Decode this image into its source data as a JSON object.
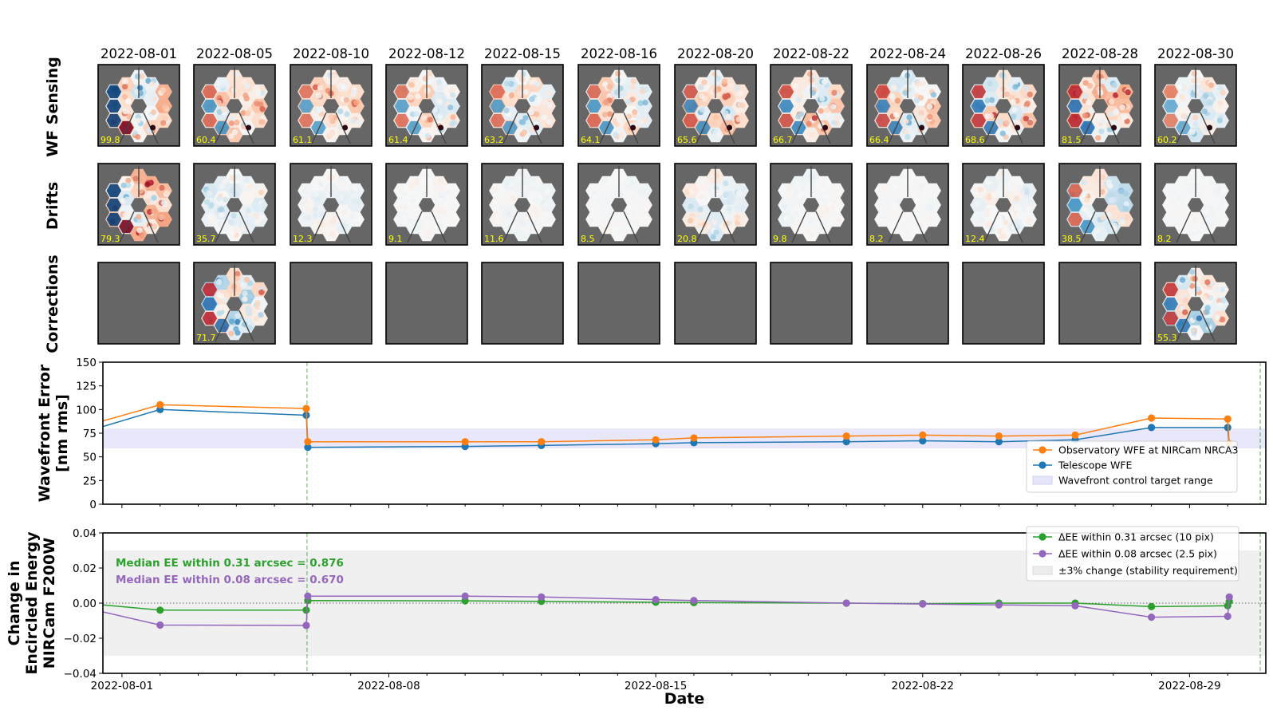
{
  "grid": {
    "dates": [
      "2022-08-01",
      "2022-08-05",
      "2022-08-10",
      "2022-08-12",
      "2022-08-15",
      "2022-08-16",
      "2022-08-20",
      "2022-08-22",
      "2022-08-24",
      "2022-08-26",
      "2022-08-28",
      "2022-08-30"
    ],
    "row_labels": [
      "WF Sensing",
      "Drifts",
      "Corrections"
    ],
    "rows": [
      {
        "values": [
          "99.8",
          "60.4",
          "61.1",
          "61.4",
          "63.2",
          "64.1",
          "65.6",
          "66.7",
          "66.4",
          "68.6",
          "81.5",
          "60.2"
        ],
        "amp": [
          0.95,
          0.75,
          0.7,
          0.7,
          0.72,
          0.74,
          0.8,
          0.82,
          0.85,
          0.9,
          0.95,
          0.65
        ]
      },
      {
        "values": [
          "79.3",
          "35.7",
          "12.3",
          "9.1",
          "11.6",
          "8.5",
          "20.8",
          "9.8",
          "8.2",
          "12.4",
          "38.5",
          "8.2"
        ],
        "amp": [
          0.95,
          0.4,
          0.18,
          0.12,
          0.16,
          0.1,
          0.4,
          0.12,
          0.08,
          0.3,
          0.75,
          0.08
        ]
      },
      {
        "values": [
          "",
          "71.7",
          "",
          "",
          "",
          "",
          "",
          "",
          "",
          "",
          "",
          "55.3"
        ],
        "amp": [
          0,
          0.95,
          0,
          0,
          0,
          0,
          0,
          0,
          0,
          0,
          0,
          0.9
        ]
      }
    ]
  },
  "chart_data": [
    {
      "type": "line",
      "ylabel": "Wavefront Error\n[nm rms]",
      "ylim": [
        0,
        150
      ],
      "yticks": [
        0,
        25,
        50,
        75,
        100,
        125,
        150
      ],
      "target_range": [
        59,
        80
      ],
      "correction_dates": [
        "2022-08-05",
        "2022-08-30"
      ],
      "series": [
        {
          "name": "Observatory WFE at NIRCam NRCA3",
          "color": "#ff7f0e",
          "x": [
            "2022-07-31T12:00",
            "2022-08-02",
            "2022-08-05T20:00",
            "2022-08-05T21:00",
            "2022-08-10",
            "2022-08-12",
            "2022-08-15",
            "2022-08-16",
            "2022-08-20",
            "2022-08-22",
            "2022-08-24",
            "2022-08-26",
            "2022-08-28",
            "2022-08-30",
            "2022-08-30T01:00"
          ],
          "y": [
            88,
            105,
            101,
            66,
            66,
            66,
            68,
            70,
            72,
            73,
            72,
            73,
            91,
            90,
            64
          ]
        },
        {
          "name": "Telescope WFE",
          "color": "#1f77b4",
          "x": [
            "2022-07-31T12:00",
            "2022-08-02",
            "2022-08-05T20:00",
            "2022-08-05T21:00",
            "2022-08-10",
            "2022-08-12",
            "2022-08-15",
            "2022-08-16",
            "2022-08-20",
            "2022-08-22",
            "2022-08-24",
            "2022-08-26",
            "2022-08-28",
            "2022-08-30",
            "2022-08-30T01:00"
          ],
          "y": [
            82,
            100,
            94,
            60,
            61,
            62,
            64,
            65,
            66,
            67,
            66,
            68,
            81,
            81,
            60
          ]
        }
      ],
      "legend": [
        "Observatory WFE at NIRCam NRCA3",
        "Telescope WFE",
        "Wavefront control target range"
      ],
      "legend_position": "lower-right"
    },
    {
      "type": "line",
      "ylabel": "Change in\nEncircled Energy\nNIRCam F200W",
      "xlabel": "Date",
      "ylim": [
        -0.04,
        0.04
      ],
      "yticks": [
        -0.04,
        -0.02,
        0.0,
        0.02,
        0.04
      ],
      "ytick_labels": [
        "−0.04",
        "−0.02",
        "0.00",
        "0.02",
        "0.04"
      ],
      "stability_band": [
        -0.03,
        0.03
      ],
      "xticks": [
        "2022-08-01",
        "2022-08-08",
        "2022-08-15",
        "2022-08-22",
        "2022-08-29"
      ],
      "xlim": [
        "2022-07-31T12:00",
        "2022-08-31T00:00"
      ],
      "annotations": [
        {
          "text": "Median EE within 0.31 arcsec = 0.876",
          "color": "#2ca02c"
        },
        {
          "text": "Median EE within 0.08 arcsec = 0.670",
          "color": "#9467bd"
        }
      ],
      "series": [
        {
          "name": "ΔEE within 0.31 arcsec (10 pix)",
          "color": "#2ca02c",
          "x": [
            "2022-07-31T12:00",
            "2022-08-02",
            "2022-08-05T20:00",
            "2022-08-05T21:00",
            "2022-08-10",
            "2022-08-12",
            "2022-08-15",
            "2022-08-16",
            "2022-08-20",
            "2022-08-22",
            "2022-08-24",
            "2022-08-26",
            "2022-08-28",
            "2022-08-30",
            "2022-08-30T01:00"
          ],
          "y": [
            -0.001,
            -0.004,
            -0.004,
            0.0015,
            0.0013,
            0.001,
            0.0005,
            0.0003,
            0.0,
            -0.0003,
            0.0,
            0.0,
            -0.002,
            -0.0015,
            0.001
          ]
        },
        {
          "name": "ΔEE within 0.08 arcsec (2.5 pix)",
          "color": "#9467bd",
          "x": [
            "2022-07-31T12:00",
            "2022-08-02",
            "2022-08-05T20:00",
            "2022-08-05T21:00",
            "2022-08-10",
            "2022-08-12",
            "2022-08-15",
            "2022-08-16",
            "2022-08-20",
            "2022-08-22",
            "2022-08-24",
            "2022-08-26",
            "2022-08-28",
            "2022-08-30",
            "2022-08-30T01:00"
          ],
          "y": [
            -0.005,
            -0.0125,
            -0.0127,
            0.004,
            0.004,
            0.0035,
            0.002,
            0.0015,
            0.0,
            -0.0005,
            -0.001,
            -0.0015,
            -0.008,
            -0.0075,
            0.0035
          ]
        }
      ],
      "legend": [
        "ΔEE within 0.31 arcsec (10 pix)",
        "ΔEE within 0.08 arcsec (2.5 pix)",
        "±3% change (stability requirement)"
      ],
      "legend_position": "upper-right"
    }
  ]
}
